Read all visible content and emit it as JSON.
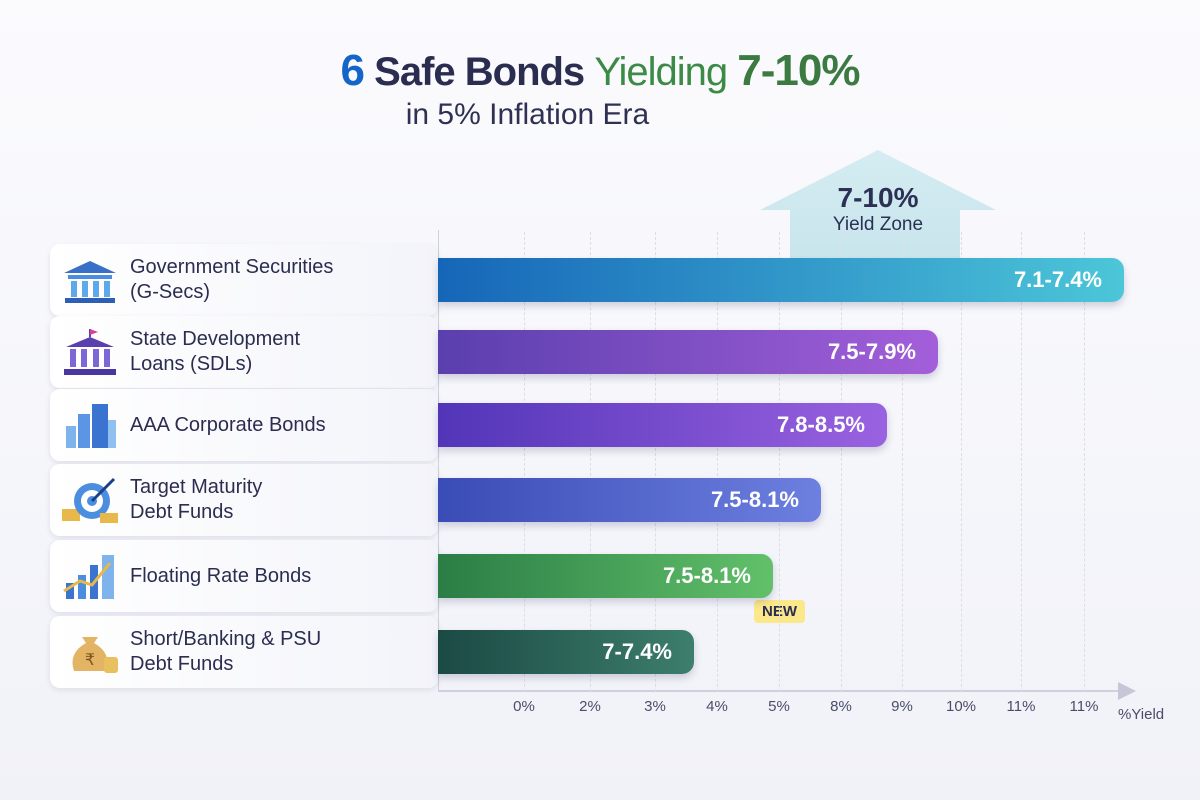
{
  "title": {
    "num": "6",
    "a": "Safe Bonds",
    "b": "Yielding",
    "c": "7-10%"
  },
  "subtitle": "in 5% Inflation Era",
  "zone": {
    "value": "7-10%",
    "label": "Yield Zone"
  },
  "badge": "NEW",
  "chart_data": {
    "type": "bar",
    "orientation": "horizontal",
    "categories": [
      "Government Securities (G-Secs)",
      "State Development Loans (SDLs)",
      "AAA Corporate Bonds",
      "Target Maturity Debt Funds",
      "Floating Rate Bonds",
      "Short/Banking & PSU Debt Funds"
    ],
    "category_lines": [
      [
        "Government Securities",
        "(G-Secs)"
      ],
      [
        "State Development",
        "Loans (SDLs)"
      ],
      [
        "AAA Corporate Bonds"
      ],
      [
        "Target Maturity",
        "Debt Funds"
      ],
      [
        "Floating Rate Bonds"
      ],
      [
        "Short/Banking & PSU",
        "Debt Funds"
      ]
    ],
    "icons": [
      "bank-building-icon",
      "state-building-icon",
      "office-tower-icon",
      "target-growth-icon",
      "rising-bars-icon",
      "rupee-moneybag-icon"
    ],
    "ranges": [
      [
        7.1,
        7.4
      ],
      [
        7.5,
        7.9
      ],
      [
        7.8,
        8.5
      ],
      [
        7.5,
        8.1
      ],
      [
        7.5,
        8.1
      ],
      [
        7,
        7.4
      ]
    ],
    "data_labels": [
      "7.1-7.4%",
      "7.5-7.9%",
      "7.8-8.5%",
      "7.5-8.1%",
      "7.5-8.1%",
      "7-7.4%"
    ],
    "colors": [
      [
        "#1666b8",
        "#4cc6d9"
      ],
      [
        "#5a3fae",
        "#a35fd9"
      ],
      [
        "#5235b8",
        "#9a62e0"
      ],
      [
        "#3a4cb5",
        "#6d80e0"
      ],
      [
        "#2a7d45",
        "#62c06a"
      ],
      [
        "#1b4a44",
        "#3d7e6c"
      ]
    ],
    "xticks": [
      "0%",
      "2%",
      "3%",
      "4%",
      "5%",
      "8%",
      "9%",
      "10%",
      "11%",
      "11%"
    ],
    "xlabel": "%Yield",
    "grid": true
  }
}
